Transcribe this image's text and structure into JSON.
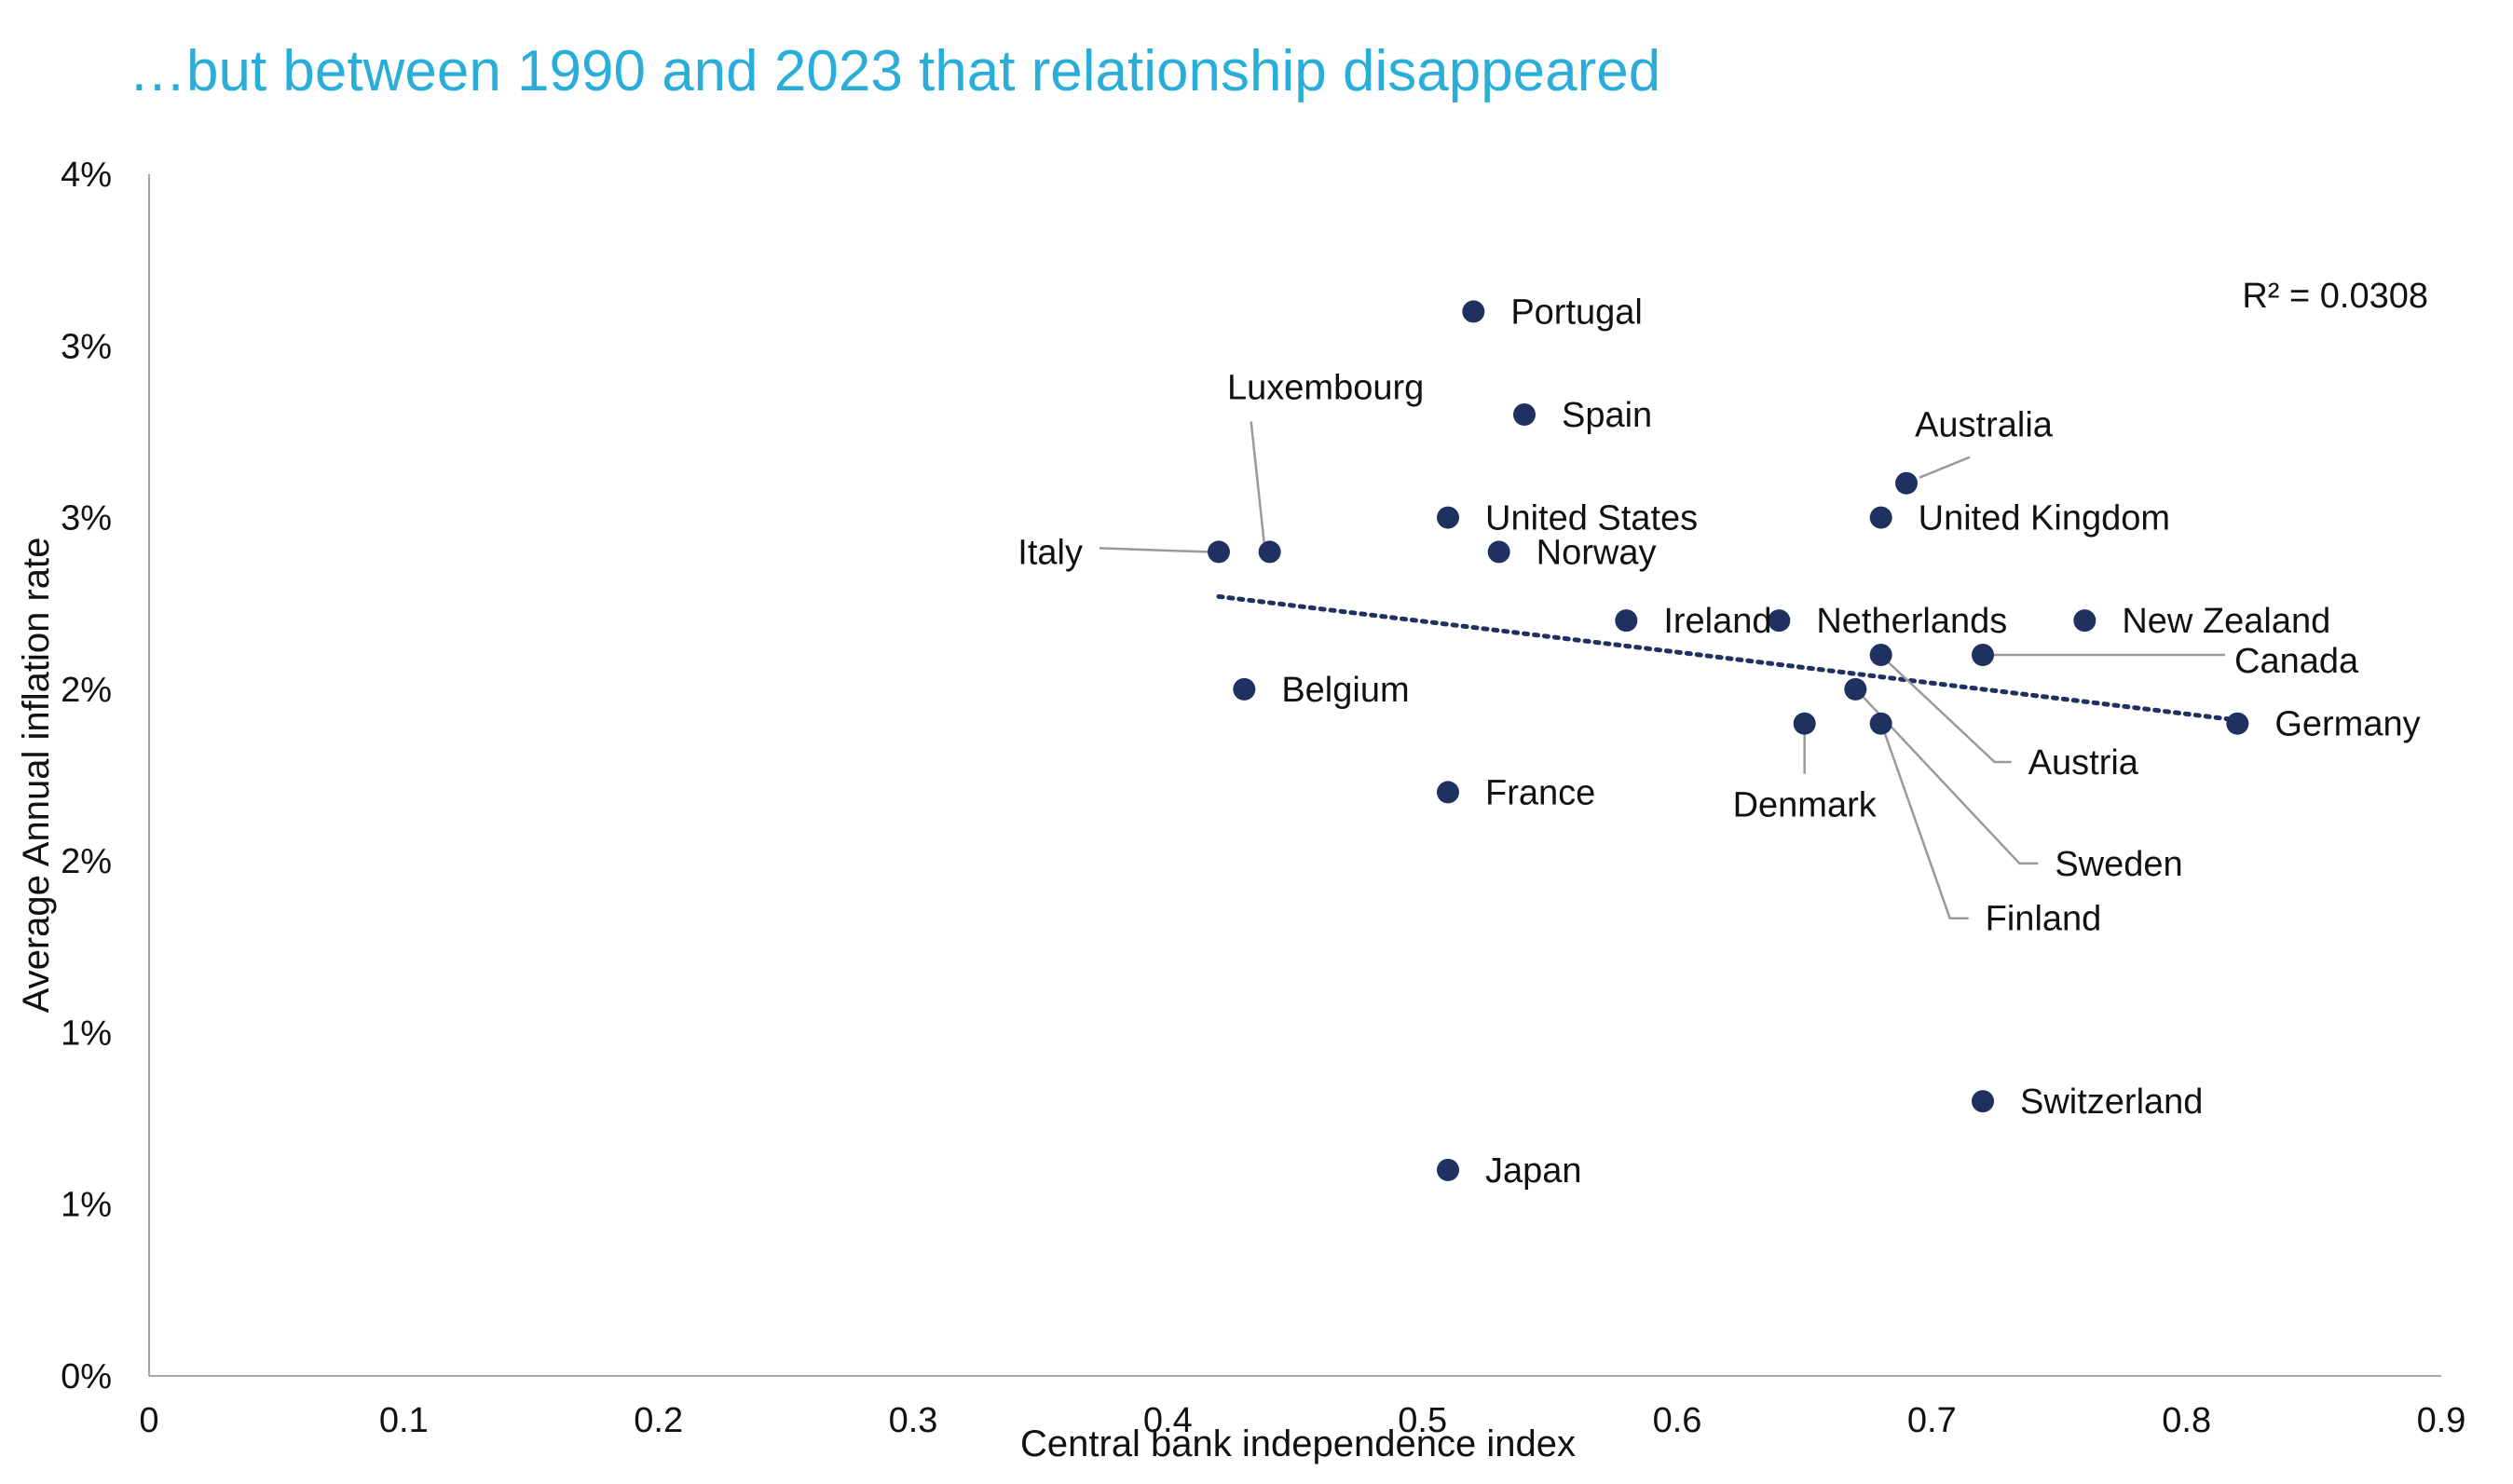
{
  "chart_data": {
    "type": "scatter",
    "title": "…but between 1990 and 2023 that relationship disappeared",
    "xlabel": "Central bank independence index",
    "ylabel": "Average Annual inflation rate",
    "xlim": [
      0,
      0.9
    ],
    "ylim": [
      0,
      3.5
    ],
    "x_ticks": [
      {
        "value": 0,
        "label": "0"
      },
      {
        "value": 0.1,
        "label": "0.1"
      },
      {
        "value": 0.2,
        "label": "0.2"
      },
      {
        "value": 0.3,
        "label": "0.3"
      },
      {
        "value": 0.4,
        "label": "0.4"
      },
      {
        "value": 0.5,
        "label": "0.5"
      },
      {
        "value": 0.6,
        "label": "0.6"
      },
      {
        "value": 0.7,
        "label": "0.7"
      },
      {
        "value": 0.8,
        "label": "0.8"
      },
      {
        "value": 0.9,
        "label": "0.9"
      }
    ],
    "y_ticks": [
      {
        "value": 0,
        "label": "0%"
      },
      {
        "value": 0.5,
        "label": "1%"
      },
      {
        "value": 1.0,
        "label": "1%"
      },
      {
        "value": 1.5,
        "label": "2%"
      },
      {
        "value": 2.0,
        "label": "2%"
      },
      {
        "value": 2.5,
        "label": "3%"
      },
      {
        "value": 3.0,
        "label": "3%"
      },
      {
        "value": 3.5,
        "label": "4%"
      }
    ],
    "points": [
      {
        "name": "Portugal",
        "x": 0.52,
        "y": 3.1
      },
      {
        "name": "Spain",
        "x": 0.54,
        "y": 2.8
      },
      {
        "name": "Luxembourg",
        "x": 0.44,
        "y": 2.4
      },
      {
        "name": "Italy",
        "x": 0.42,
        "y": 2.4
      },
      {
        "name": "United States",
        "x": 0.51,
        "y": 2.5
      },
      {
        "name": "Norway",
        "x": 0.53,
        "y": 2.4
      },
      {
        "name": "Australia",
        "x": 0.69,
        "y": 2.6
      },
      {
        "name": "United Kingdom",
        "x": 0.68,
        "y": 2.5
      },
      {
        "name": "Ireland",
        "x": 0.58,
        "y": 2.2
      },
      {
        "name": "Netherlands",
        "x": 0.64,
        "y": 2.2
      },
      {
        "name": "New Zealand",
        "x": 0.76,
        "y": 2.2
      },
      {
        "name": "Canada",
        "x": 0.72,
        "y": 2.1
      },
      {
        "name": "Austria",
        "x": 0.68,
        "y": 2.1
      },
      {
        "name": "Belgium",
        "x": 0.43,
        "y": 2.0
      },
      {
        "name": "Sweden",
        "x": 0.67,
        "y": 2.0
      },
      {
        "name": "Germany",
        "x": 0.82,
        "y": 1.9
      },
      {
        "name": "Denmark",
        "x": 0.65,
        "y": 1.9
      },
      {
        "name": "Finland",
        "x": 0.68,
        "y": 1.9
      },
      {
        "name": "France",
        "x": 0.51,
        "y": 1.7
      },
      {
        "name": "Switzerland",
        "x": 0.72,
        "y": 0.8
      },
      {
        "name": "Japan",
        "x": 0.51,
        "y": 0.6
      }
    ],
    "trendline": {
      "style": "dotted",
      "x_start": 0.42,
      "y_start": 2.27,
      "x_end": 0.82,
      "y_end": 1.91
    },
    "annotation": "R² = 0.0308",
    "grid": false,
    "colors": {
      "point": "#1f3160",
      "title": "#2aaed9",
      "leader": "#9a9a9a",
      "axis": "#a6a6a6",
      "text": "#111111"
    }
  }
}
